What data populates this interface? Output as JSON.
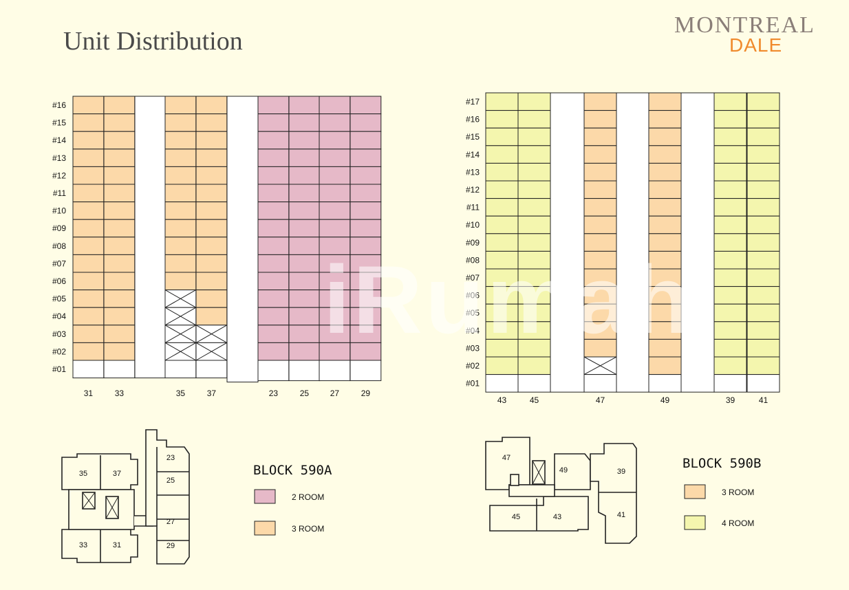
{
  "title": "Unit Distribution",
  "logo": {
    "line1": "MONTREAL",
    "line2": "DALE"
  },
  "watermark": "iRumah",
  "colors": {
    "two_room": "#e6b9c8",
    "three_room": "#fcd9a9",
    "four_room": "#f4f6ae",
    "empty": "#ffffff"
  },
  "block_a": {
    "name": "BLOCK 590A",
    "floors": [
      "#16",
      "#15",
      "#14",
      "#13",
      "#12",
      "#11",
      "#10",
      "#09",
      "#08",
      "#07",
      "#06",
      "#05",
      "#04",
      "#03",
      "#02",
      "#01"
    ],
    "units": [
      "31",
      "33",
      "35",
      "37",
      "23",
      "25",
      "27",
      "29"
    ],
    "legend": [
      {
        "label": "2 ROOM",
        "type": "two_room"
      },
      {
        "label": "3 ROOM",
        "type": "three_room"
      }
    ],
    "plan_units": [
      "35",
      "37",
      "33",
      "31",
      "23",
      "25",
      "27",
      "29"
    ]
  },
  "block_b": {
    "name": "BLOCK 590B",
    "floors": [
      "#17",
      "#16",
      "#15",
      "#14",
      "#13",
      "#12",
      "#11",
      "#10",
      "#09",
      "#08",
      "#07",
      "#06",
      "#05",
      "#04",
      "#03",
      "#02",
      "#01"
    ],
    "units": [
      "43",
      "45",
      "47",
      "49",
      "39",
      "41"
    ],
    "legend": [
      {
        "label": "3 ROOM",
        "type": "three_room"
      },
      {
        "label": "4 ROOM",
        "type": "four_room"
      }
    ],
    "plan_units": [
      "47",
      "49",
      "39",
      "45",
      "43",
      "41"
    ]
  }
}
